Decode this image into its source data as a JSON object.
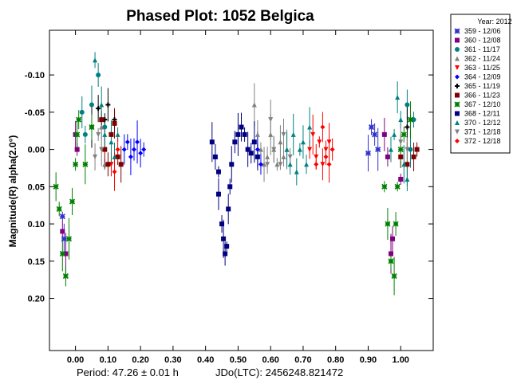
{
  "chart_data": {
    "type": "scatter",
    "title": "Phased Plot: 1052 Belgica",
    "ylabel": "Magnitude(R) alpha(2.0°)",
    "xlabel": "",
    "xlim": [
      -0.08,
      1.1
    ],
    "ylim": [
      0.27,
      -0.16
    ],
    "y_inverted": true,
    "x_ticks": [
      "0.00",
      "0.10",
      "0.20",
      "0.30",
      "0.40",
      "0.50",
      "0.60",
      "0.70",
      "0.80",
      "0.90",
      "1.00"
    ],
    "y_ticks": [
      "-0.10",
      "-0.05",
      "0.00",
      "0.05",
      "0.10",
      "0.15",
      "0.20"
    ],
    "error_bars": true,
    "grid": false,
    "legend": {
      "title": "Year: 2012",
      "placement": "outside-right",
      "entries": [
        {
          "label": "359 - 12/06",
          "color": "#3333cc",
          "marker": "star"
        },
        {
          "label": "360 - 12/08",
          "color": "#800080",
          "marker": "square"
        },
        {
          "label": "361 - 11/17",
          "color": "#008080",
          "marker": "circle"
        },
        {
          "label": "362 - 11/24",
          "color": "#808080",
          "marker": "triangle"
        },
        {
          "label": "363 - 11/25",
          "color": "#ff0000",
          "marker": "triangle-down"
        },
        {
          "label": "364 - 12/09",
          "color": "#0000ff",
          "marker": "diamond"
        },
        {
          "label": "365 - 11/19",
          "color": "#000000",
          "marker": "plus"
        },
        {
          "label": "366 - 11/23",
          "color": "#800000",
          "marker": "square"
        },
        {
          "label": "367 - 12/10",
          "color": "#008000",
          "marker": "star"
        },
        {
          "label": "368 - 12/11",
          "color": "#000080",
          "marker": "square"
        },
        {
          "label": "370 - 12/12",
          "color": "#008080",
          "marker": "triangle"
        },
        {
          "label": "371 - 12/18",
          "color": "#808080",
          "marker": "triangle-down"
        },
        {
          "label": "372 - 12/18",
          "color": "#ff0000",
          "marker": "diamond"
        }
      ]
    },
    "series": [
      {
        "name": "359 - 12/06",
        "points": [
          [
            -0.04,
            0.09
          ],
          [
            -0.035,
            0.12
          ],
          [
            0.91,
            -0.03
          ],
          [
            0.9,
            0.005
          ],
          [
            0.92,
            -0.02
          ],
          [
            0.93,
            0.0
          ]
        ]
      },
      {
        "name": "360 - 12/08",
        "points": [
          [
            -0.04,
            0.11
          ],
          [
            -0.03,
            0.14
          ],
          [
            0.0,
            -0.02
          ],
          [
            0.005,
            0.0
          ],
          [
            0.95,
            -0.02
          ],
          [
            0.96,
            0.01
          ],
          [
            0.97,
            0.14
          ],
          [
            0.975,
            0.12
          ],
          [
            1.0,
            0.04
          ]
        ]
      },
      {
        "name": "361 - 11/17",
        "points": [
          [
            0.02,
            -0.05
          ],
          [
            0.03,
            -0.02
          ],
          [
            0.05,
            -0.06
          ],
          [
            0.07,
            -0.1
          ],
          [
            0.09,
            -0.03
          ],
          [
            1.02,
            -0.06
          ],
          [
            1.04,
            -0.04
          ],
          [
            1.03,
            0.0
          ]
        ]
      },
      {
        "name": "362 - 11/24",
        "points": [
          [
            0.55,
            -0.06
          ],
          [
            0.56,
            -0.02
          ],
          [
            0.57,
            0.0
          ],
          [
            0.58,
            0.02
          ],
          [
            0.59,
            0.01
          ],
          [
            0.6,
            -0.02
          ],
          [
            0.61,
            0.0
          ],
          [
            0.62,
            0.02
          ],
          [
            0.63,
            -0.01
          ],
          [
            0.64,
            0.01
          ],
          [
            0.65,
            0.0
          ],
          [
            0.08,
            -0.03
          ],
          [
            0.09,
            0.02
          ]
        ]
      },
      {
        "name": "363 - 11/25",
        "points": [
          [
            0.72,
            0.0
          ],
          [
            0.73,
            -0.02
          ],
          [
            0.74,
            0.01
          ],
          [
            0.75,
            -0.01
          ],
          [
            0.76,
            0.02
          ],
          [
            0.77,
            0.0
          ],
          [
            0.78,
            -0.01
          ],
          [
            0.11,
            0.02
          ]
        ]
      },
      {
        "name": "364 - 12/09",
        "points": [
          [
            0.15,
            0.0
          ],
          [
            0.16,
            -0.01
          ],
          [
            0.17,
            0.01
          ],
          [
            0.18,
            0.0
          ],
          [
            0.19,
            -0.01
          ],
          [
            0.2,
            0.005
          ],
          [
            0.21,
            0.0
          ],
          [
            0.56,
            0.0
          ],
          [
            0.57,
            0.02
          ]
        ]
      },
      {
        "name": "365 - 11/19",
        "points": [
          [
            0.05,
            -0.03
          ],
          [
            0.07,
            -0.055
          ],
          [
            0.09,
            -0.04
          ],
          [
            0.1,
            -0.06
          ],
          [
            0.12,
            -0.04
          ],
          [
            1.02,
            -0.03
          ]
        ]
      },
      {
        "name": "366 - 11/23",
        "points": [
          [
            0.08,
            -0.04
          ],
          [
            0.09,
            0.0
          ],
          [
            0.1,
            0.02
          ],
          [
            0.11,
            -0.02
          ],
          [
            0.12,
            -0.035
          ],
          [
            0.13,
            0.01
          ],
          [
            0.14,
            0.02
          ],
          [
            1.0,
            0.01
          ],
          [
            1.02,
            0.02
          ],
          [
            1.04,
            0.01
          ],
          [
            1.05,
            0.0
          ]
        ]
      },
      {
        "name": "367 - 12/10",
        "points": [
          [
            -0.06,
            0.05
          ],
          [
            -0.05,
            0.08
          ],
          [
            -0.04,
            0.14
          ],
          [
            -0.03,
            0.17
          ],
          [
            -0.02,
            0.12
          ],
          [
            -0.01,
            0.07
          ],
          [
            0.0,
            0.02
          ],
          [
            0.005,
            -0.02
          ],
          [
            0.01,
            -0.04
          ],
          [
            0.03,
            0.02
          ],
          [
            0.05,
            -0.03
          ],
          [
            0.95,
            0.05
          ],
          [
            0.96,
            0.1
          ],
          [
            0.97,
            0.15
          ],
          [
            0.98,
            0.17
          ],
          [
            0.985,
            0.1
          ],
          [
            0.99,
            0.05
          ],
          [
            1.0,
            0.0
          ],
          [
            1.01,
            -0.02
          ],
          [
            1.03,
            -0.04
          ]
        ]
      },
      {
        "name": "368 - 12/11",
        "points": [
          [
            0.42,
            -0.01
          ],
          [
            0.43,
            0.01
          ],
          [
            0.44,
            0.03
          ],
          [
            0.44,
            0.06
          ],
          [
            0.45,
            0.1
          ],
          [
            0.455,
            0.12
          ],
          [
            0.46,
            0.14
          ],
          [
            0.465,
            0.13
          ],
          [
            0.47,
            0.08
          ],
          [
            0.475,
            0.05
          ],
          [
            0.48,
            0.02
          ],
          [
            0.49,
            -0.01
          ],
          [
            0.5,
            -0.02
          ],
          [
            0.51,
            -0.03
          ],
          [
            0.52,
            -0.02
          ],
          [
            0.53,
            0.0
          ],
          [
            0.54,
            0.005
          ],
          [
            0.55,
            -0.01
          ],
          [
            0.56,
            0.01
          ]
        ]
      },
      {
        "name": "370 - 12/12",
        "points": [
          [
            0.06,
            -0.12
          ],
          [
            0.08,
            -0.06
          ],
          [
            0.09,
            -0.02
          ],
          [
            0.11,
            -0.01
          ],
          [
            0.12,
            0.01
          ],
          [
            0.13,
            -0.02
          ],
          [
            0.65,
            0.0
          ],
          [
            0.66,
            0.02
          ],
          [
            0.67,
            -0.02
          ],
          [
            0.68,
            0.03
          ],
          [
            0.69,
            0.0
          ],
          [
            0.7,
            -0.01
          ],
          [
            0.71,
            0.02
          ],
          [
            0.72,
            -0.03
          ],
          [
            0.97,
            0.0
          ],
          [
            0.98,
            -0.02
          ],
          [
            0.99,
            -0.07
          ],
          [
            1.0,
            -0.04
          ],
          [
            1.01,
            0.02
          ],
          [
            1.02,
            0.04
          ]
        ]
      },
      {
        "name": "371 - 12/18",
        "points": [
          [
            0.06,
            0.01
          ],
          [
            0.07,
            -0.02
          ],
          [
            0.08,
            0.0
          ],
          [
            0.59,
            0.02
          ],
          [
            0.6,
            -0.04
          ],
          [
            0.61,
            0.0
          ],
          [
            0.63,
            0.02
          ],
          [
            0.64,
            -0.02
          ],
          [
            0.66,
            0.01
          ],
          [
            1.0,
            -0.01
          ],
          [
            1.02,
            0.0
          ]
        ]
      },
      {
        "name": "372 - 12/18",
        "points": [
          [
            0.12,
            0.03
          ],
          [
            0.13,
            0.0
          ],
          [
            0.74,
            0.02
          ],
          [
            0.76,
            -0.03
          ],
          [
            0.77,
            0.01
          ],
          [
            0.78,
            0.02
          ],
          [
            0.79,
            0.0
          ]
        ]
      }
    ]
  },
  "footer": {
    "period": "Period: 47.26 ± 0.01 h",
    "epoch": "JDo(LTC): 2456248.821472"
  }
}
